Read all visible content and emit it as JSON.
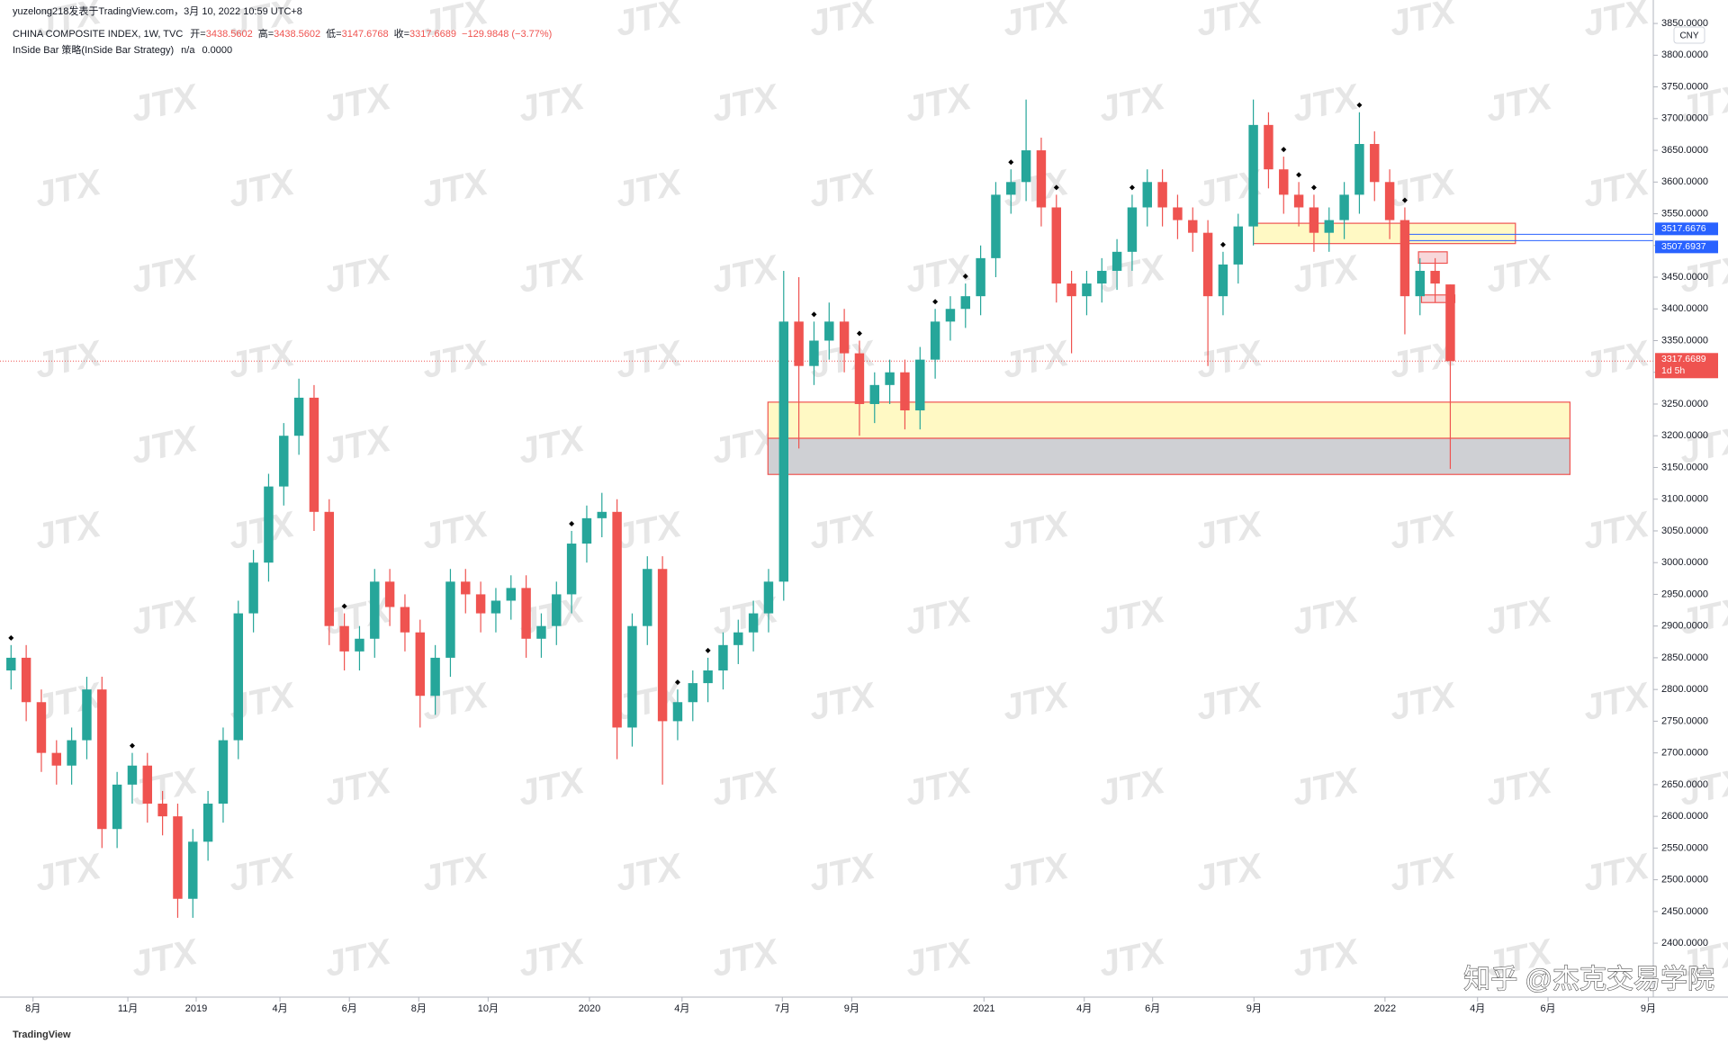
{
  "header": {
    "publisher": "yuzelong218发表于TradingView.com，3月 10, 2022 10:59 UTC+8"
  },
  "footer": {
    "brand": "TradingView",
    "credit": "知乎 @杰克交易学院"
  },
  "chart_data": {
    "type": "candlestick",
    "title": "CHINA COMPOSITE INDEX, 1W, TVC",
    "ohlc_labels": [
      "开=",
      "高=",
      "低=",
      "收="
    ],
    "change": "−129.9848 (−3.77%)",
    "indicator": "InSide Bar 策略(InSide Bar Strategy)",
    "indicator_values": [
      "n/a",
      "0.0000"
    ],
    "currency": "CNY",
    "countdown": "1d 5h",
    "watermark": "JTX",
    "up_color": "#26a69a",
    "down_color": "#ef5350",
    "open": [
      2830,
      2850,
      2780,
      2700,
      2680,
      2720,
      2800,
      2580,
      2650,
      2680,
      2620,
      2600,
      2470,
      2560,
      2620,
      2720,
      2920,
      3000,
      3120,
      3200,
      3260,
      3080,
      2900,
      2860,
      2880,
      2970,
      2930,
      2890,
      2790,
      2850,
      2970,
      2950,
      2920,
      2940,
      2960,
      2880,
      2900,
      2950,
      3030,
      3070,
      3080,
      2740,
      2900,
      2990,
      2750,
      2780,
      2810,
      2830,
      2870,
      2890,
      2920,
      2970,
      3380,
      3310,
      3350,
      3380,
      3330,
      3250,
      3280,
      3300,
      3240,
      3320,
      3380,
      3400,
      3420,
      3480,
      3580,
      3600,
      3650,
      3560,
      3440,
      3420,
      3440,
      3460,
      3490,
      3560,
      3600,
      3560,
      3540,
      3520,
      3420,
      3470,
      3530,
      3690,
      3620,
      3580,
      3560,
      3520,
      3540,
      3580,
      3660,
      3600,
      3540,
      3420,
      3460,
      3438.5602
    ],
    "high": [
      2870,
      2870,
      2800,
      2720,
      2740,
      2820,
      2820,
      2670,
      2700,
      2700,
      2640,
      2620,
      2580,
      2640,
      2740,
      2940,
      3020,
      3140,
      3220,
      3290,
      3280,
      3100,
      2920,
      2900,
      2990,
      2990,
      2950,
      2910,
      2870,
      2990,
      2990,
      2970,
      2960,
      2980,
      2980,
      2920,
      2970,
      3050,
      3090,
      3110,
      3100,
      2920,
      3010,
      3010,
      2800,
      2830,
      2850,
      2890,
      2910,
      2940,
      2990,
      3460,
      3450,
      3380,
      3410,
      3400,
      3350,
      3300,
      3320,
      3320,
      3340,
      3400,
      3420,
      3440,
      3500,
      3600,
      3620,
      3730,
      3670,
      3580,
      3460,
      3460,
      3480,
      3510,
      3580,
      3620,
      3620,
      3580,
      3560,
      3540,
      3490,
      3550,
      3730,
      3710,
      3640,
      3600,
      3580,
      3560,
      3600,
      3710,
      3680,
      3620,
      3560,
      3480,
      3480,
      3438.5602
    ],
    "low": [
      2800,
      2750,
      2670,
      2650,
      2650,
      2690,
      2550,
      2550,
      2620,
      2590,
      2570,
      2440,
      2440,
      2530,
      2590,
      2690,
      2890,
      2970,
      3090,
      3170,
      3050,
      2870,
      2830,
      2830,
      2850,
      2900,
      2860,
      2740,
      2760,
      2820,
      2920,
      2890,
      2890,
      2910,
      2850,
      2850,
      2870,
      2920,
      3000,
      3040,
      2690,
      2710,
      2870,
      2650,
      2720,
      2750,
      2780,
      2800,
      2840,
      2860,
      2890,
      2940,
      3180,
      3280,
      3320,
      3300,
      3200,
      3220,
      3250,
      3210,
      3210,
      3290,
      3350,
      3370,
      3390,
      3450,
      3550,
      3570,
      3530,
      3410,
      3330,
      3390,
      3410,
      3430,
      3460,
      3530,
      3530,
      3510,
      3490,
      3310,
      3390,
      3440,
      3500,
      3590,
      3550,
      3530,
      3490,
      3490,
      3510,
      3550,
      3570,
      3510,
      3360,
      3390,
      3410,
      3147.6768
    ],
    "close": [
      2850,
      2780,
      2700,
      2680,
      2720,
      2800,
      2580,
      2650,
      2680,
      2620,
      2600,
      2470,
      2560,
      2620,
      2720,
      2920,
      3000,
      3120,
      3200,
      3260,
      3080,
      2900,
      2860,
      2880,
      2970,
      2930,
      2890,
      2790,
      2850,
      2970,
      2950,
      2920,
      2940,
      2960,
      2880,
      2900,
      2950,
      3030,
      3070,
      3080,
      2740,
      2900,
      2990,
      2750,
      2780,
      2810,
      2830,
      2870,
      2890,
      2920,
      2970,
      3380,
      3310,
      3350,
      3380,
      3330,
      3250,
      3280,
      3300,
      3240,
      3320,
      3380,
      3400,
      3420,
      3480,
      3580,
      3600,
      3650,
      3560,
      3440,
      3420,
      3440,
      3460,
      3490,
      3560,
      3600,
      3560,
      3540,
      3520,
      3420,
      3470,
      3530,
      3690,
      3620,
      3580,
      3560,
      3520,
      3540,
      3580,
      3660,
      3600,
      3540,
      3420,
      3460,
      3440,
      3317.6689
    ],
    "signals": [
      0,
      8,
      22,
      37,
      44,
      46,
      53,
      56,
      61,
      63,
      66,
      69,
      74,
      80,
      84,
      85,
      86,
      89,
      92
    ],
    "xlim": [
      -0.73,
      108.4
    ],
    "xticks": [
      {
        "value": 1.45,
        "label": "8月"
      },
      {
        "value": 7.71,
        "label": "11月"
      },
      {
        "value": 12.22,
        "label": "2019"
      },
      {
        "value": 17.75,
        "label": "4月"
      },
      {
        "value": 22.33,
        "label": "6月"
      },
      {
        "value": 26.91,
        "label": "8月"
      },
      {
        "value": 31.49,
        "label": "10月"
      },
      {
        "value": 38.18,
        "label": "2020"
      },
      {
        "value": 44.29,
        "label": "4月"
      },
      {
        "value": 50.91,
        "label": "7月"
      },
      {
        "value": 55.49,
        "label": "9月"
      },
      {
        "value": 64.22,
        "label": "2021"
      },
      {
        "value": 70.84,
        "label": "4月"
      },
      {
        "value": 75.35,
        "label": "6月"
      },
      {
        "value": 82.04,
        "label": "9月"
      },
      {
        "value": 90.69,
        "label": "2022"
      },
      {
        "value": 96.8,
        "label": "4月"
      },
      {
        "value": 101.45,
        "label": "6月"
      },
      {
        "value": 108.07,
        "label": "9月"
      }
    ],
    "ylim": [
      2315,
      3887
    ],
    "yticks": [
      {
        "value": 2400,
        "label": "2400.0000"
      },
      {
        "value": 2450,
        "label": "2450.0000"
      },
      {
        "value": 2500,
        "label": "2500.0000"
      },
      {
        "value": 2550,
        "label": "2550.0000"
      },
      {
        "value": 2600,
        "label": "2600.0000"
      },
      {
        "value": 2650,
        "label": "2650.0000"
      },
      {
        "value": 2700,
        "label": "2700.0000"
      },
      {
        "value": 2750,
        "label": "2750.0000"
      },
      {
        "value": 2800,
        "label": "2800.0000"
      },
      {
        "value": 2850,
        "label": "2850.0000"
      },
      {
        "value": 2900,
        "label": "2900.0000"
      },
      {
        "value": 2950,
        "label": "2950.0000"
      },
      {
        "value": 3000,
        "label": "3000.0000"
      },
      {
        "value": 3050,
        "label": "3050.0000"
      },
      {
        "value": 3100,
        "label": "3100.0000"
      },
      {
        "value": 3150,
        "label": "3150.0000"
      },
      {
        "value": 3200,
        "label": "3200.0000"
      },
      {
        "value": 3250,
        "label": "3250.0000"
      },
      {
        "value": 3300,
        "label": "3300.0000"
      },
      {
        "value": 3350,
        "label": "3350.0000"
      },
      {
        "value": 3400,
        "label": "3400.0000"
      },
      {
        "value": 3450,
        "label": "3450.0000"
      },
      {
        "value": 3500,
        "label": "3500.0000"
      },
      {
        "value": 3550,
        "label": "3550.0000"
      },
      {
        "value": 3600,
        "label": "3600.0000"
      },
      {
        "value": 3650,
        "label": "3650.0000"
      },
      {
        "value": 3700,
        "label": "3700.0000"
      },
      {
        "value": 3750,
        "label": "3750.0000"
      },
      {
        "value": 3800,
        "label": "3800.0000"
      },
      {
        "value": 3850,
        "label": "3850.0000"
      }
    ],
    "zones": [
      {
        "y": [
          3196,
          3253
        ],
        "x": [
          49.96,
          102.9
        ],
        "fill": "#fff9c4",
        "stroke": "#ef5350"
      },
      {
        "y": [
          3139,
          3196
        ],
        "x": [
          49.96,
          102.9
        ],
        "fill": "#cfd0d4",
        "stroke": "#ef5350"
      },
      {
        "y": [
          3503,
          3535
        ],
        "x": [
          82.0,
          99.3
        ],
        "fill": "#fff9c4",
        "stroke": "#ef5350"
      },
      {
        "y": [
          3472,
          3490
        ],
        "x": [
          92.9,
          94.8
        ],
        "fill": "#f8d7da",
        "stroke": "#ef5350"
      },
      {
        "y": [
          3410,
          3422
        ],
        "x": [
          93.1,
          95.3
        ],
        "fill": "#f8d7da",
        "stroke": "#ef5350"
      }
    ],
    "price_lines": [
      {
        "value": 3517.6676,
        "color": "#2962ff"
      },
      {
        "value": 3507.6937,
        "color": "#2962ff"
      }
    ]
  }
}
